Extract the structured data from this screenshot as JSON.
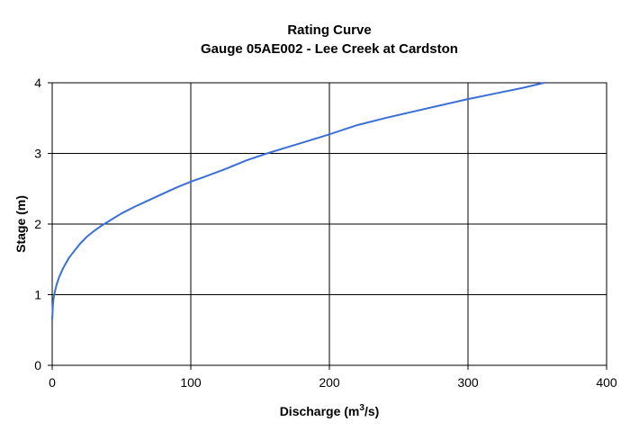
{
  "chart_data": {
    "type": "line",
    "title": "Rating Curve",
    "subtitle": "Gauge 05AE002 - Lee Creek at Cardston",
    "xlabel": "Discharge (m3/s)",
    "xlabel_main": "Discharge (m",
    "xlabel_sup": "3",
    "xlabel_tail": "/s)",
    "ylabel": "Stage (m)",
    "xlim": [
      0,
      400
    ],
    "ylim": [
      0,
      4
    ],
    "xticks": [
      0,
      100,
      200,
      300,
      400
    ],
    "yticks": [
      0,
      1,
      2,
      3,
      4
    ],
    "grid": true,
    "series": [
      {
        "color": "#3a6fd8",
        "x": [
          0,
          0.5,
          1,
          2,
          3,
          5,
          8,
          12,
          16,
          20,
          25,
          30,
          35,
          40,
          50,
          60,
          70,
          80,
          90,
          100,
          110,
          125,
          140,
          155,
          170,
          185,
          200,
          220,
          240,
          260,
          280,
          300,
          320,
          340,
          355
        ],
        "y": [
          0.65,
          0.85,
          0.95,
          1.05,
          1.13,
          1.25,
          1.38,
          1.52,
          1.62,
          1.72,
          1.82,
          1.9,
          1.97,
          2.03,
          2.15,
          2.25,
          2.34,
          2.43,
          2.52,
          2.6,
          2.67,
          2.78,
          2.9,
          3.0,
          3.09,
          3.18,
          3.27,
          3.4,
          3.5,
          3.59,
          3.68,
          3.77,
          3.85,
          3.93,
          4.0
        ]
      }
    ]
  }
}
